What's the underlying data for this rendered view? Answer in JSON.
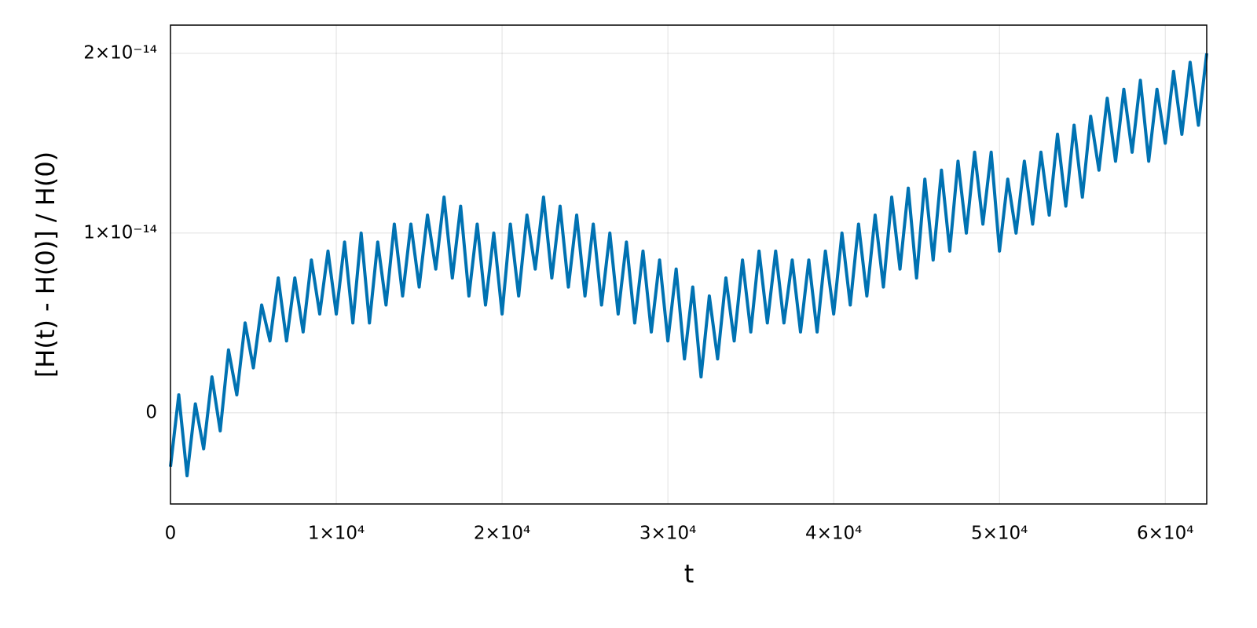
{
  "chart_data": {
    "type": "line",
    "xlabel": "t",
    "ylabel": "[H(t) - H(0)] / H(0)",
    "color": "#0072b2",
    "grid": true,
    "xlim": [
      0,
      62500
    ],
    "ylim": [
      -5.07e-15,
      2.157e-14
    ],
    "xticks": [
      0,
      {
        "value": 10000,
        "label": "1×10⁴"
      },
      {
        "value": 20000,
        "label": "2×10⁴"
      },
      {
        "value": 30000,
        "label": "3×10⁴"
      },
      {
        "value": 40000,
        "label": "4×10⁴"
      },
      {
        "value": 50000,
        "label": "5×10⁴"
      },
      {
        "value": 60000,
        "label": "6×10⁴"
      }
    ],
    "yticks": [
      0,
      {
        "value": 1e-14,
        "label": "1×10⁻¹⁴"
      },
      {
        "value": 2e-14,
        "label": "2×10⁻¹⁴"
      }
    ],
    "x": [
      0,
      500,
      1000,
      1500,
      2000,
      2500,
      3000,
      3500,
      4000,
      4500,
      5000,
      5500,
      6000,
      6500,
      7000,
      7500,
      8000,
      8500,
      9000,
      9500,
      10000,
      10500,
      11000,
      11500,
      12000,
      12500,
      13000,
      13500,
      14000,
      14500,
      15000,
      15500,
      16000,
      16500,
      17000,
      17500,
      18000,
      18500,
      19000,
      19500,
      20000,
      20500,
      21000,
      21500,
      22000,
      22500,
      23000,
      23500,
      24000,
      24500,
      25000,
      25500,
      26000,
      26500,
      27000,
      27500,
      28000,
      28500,
      29000,
      29500,
      30000,
      30500,
      31000,
      31500,
      32000,
      32500,
      33000,
      33500,
      34000,
      34500,
      35000,
      35500,
      36000,
      36500,
      37000,
      37500,
      38000,
      38500,
      39000,
      39500,
      40000,
      40500,
      41000,
      41500,
      42000,
      42500,
      43000,
      43500,
      44000,
      44500,
      45000,
      45500,
      46000,
      46500,
      47000,
      47500,
      48000,
      48500,
      49000,
      49500,
      50000,
      50500,
      51000,
      51500,
      52000,
      52500,
      53000,
      53500,
      54000,
      54500,
      55000,
      55500,
      56000,
      56500,
      57000,
      57500,
      58000,
      58500,
      59000,
      59500,
      60000,
      60500,
      61000,
      61500,
      62000,
      62500
    ],
    "values": [
      -3e-15,
      1e-15,
      -3.5e-15,
      5e-16,
      -2e-15,
      2e-15,
      -1e-15,
      3.5e-15,
      1e-15,
      5e-15,
      2.5e-15,
      6e-15,
      4e-15,
      7.5e-15,
      4e-15,
      7.5e-15,
      4.5e-15,
      8.5e-15,
      5.5e-15,
      9e-15,
      5.5e-15,
      9.5e-15,
      5e-15,
      1e-14,
      5e-15,
      9.5e-15,
      6e-15,
      1.05e-14,
      6.5e-15,
      1.05e-14,
      7e-15,
      1.1e-14,
      8e-15,
      1.2e-14,
      7.5e-15,
      1.15e-14,
      6.5e-15,
      1.05e-14,
      6e-15,
      1e-14,
      5.5e-15,
      1.05e-14,
      6.5e-15,
      1.1e-14,
      8e-15,
      1.2e-14,
      7.5e-15,
      1.15e-14,
      7e-15,
      1.1e-14,
      6.5e-15,
      1.05e-14,
      6e-15,
      1e-14,
      5.5e-15,
      9.5e-15,
      5e-15,
      9e-15,
      4.5e-15,
      8.5e-15,
      4e-15,
      8e-15,
      3e-15,
      7e-15,
      2e-15,
      6.5e-15,
      3e-15,
      7.5e-15,
      4e-15,
      8.5e-15,
      4.5e-15,
      9e-15,
      5e-15,
      9e-15,
      5e-15,
      8.5e-15,
      4.5e-15,
      8.5e-15,
      4.5e-15,
      9e-15,
      5.5e-15,
      1e-14,
      6e-15,
      1.05e-14,
      6.5e-15,
      1.1e-14,
      7e-15,
      1.2e-14,
      8e-15,
      1.25e-14,
      7.5e-15,
      1.3e-14,
      8.5e-15,
      1.35e-14,
      9e-15,
      1.4e-14,
      1e-14,
      1.45e-14,
      1.05e-14,
      1.45e-14,
      9e-15,
      1.3e-14,
      1e-14,
      1.4e-14,
      1.05e-14,
      1.45e-14,
      1.1e-14,
      1.55e-14,
      1.15e-14,
      1.6e-14,
      1.2e-14,
      1.65e-14,
      1.35e-14,
      1.75e-14,
      1.4e-14,
      1.8e-14,
      1.45e-14,
      1.85e-14,
      1.4e-14,
      1.8e-14,
      1.5e-14,
      1.9e-14,
      1.55e-14,
      1.95e-14,
      1.6e-14,
      2e-14
    ]
  }
}
